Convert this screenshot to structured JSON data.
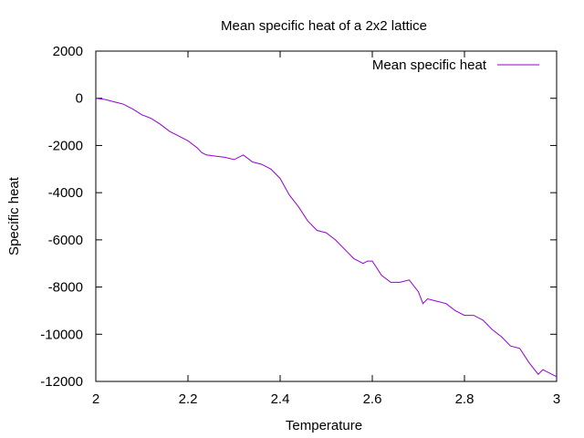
{
  "chart_data": {
    "type": "line",
    "title": "Mean specific heat of a 2x2 lattice",
    "xlabel": "Temperature",
    "ylabel": "Specific heat",
    "xlim": [
      2,
      3
    ],
    "ylim": [
      -12000,
      2000
    ],
    "xticks": [
      "2",
      "2.2",
      "2.4",
      "2.6",
      "2.8",
      "3"
    ],
    "yticks": [
      "2000",
      "0",
      "-2000",
      "-4000",
      "-6000",
      "-8000",
      "-10000",
      "-12000"
    ],
    "grid": false,
    "legend_position": "top-right",
    "series": [
      {
        "name": "Mean specific heat",
        "color": "#9400d3",
        "x": [
          2.0,
          2.02,
          2.04,
          2.06,
          2.08,
          2.1,
          2.12,
          2.14,
          2.16,
          2.18,
          2.2,
          2.22,
          2.23,
          2.24,
          2.26,
          2.28,
          2.3,
          2.32,
          2.34,
          2.36,
          2.38,
          2.4,
          2.42,
          2.44,
          2.46,
          2.48,
          2.5,
          2.52,
          2.54,
          2.56,
          2.58,
          2.59,
          2.6,
          2.62,
          2.64,
          2.66,
          2.68,
          2.7,
          2.71,
          2.72,
          2.74,
          2.76,
          2.78,
          2.8,
          2.82,
          2.84,
          2.86,
          2.88,
          2.9,
          2.92,
          2.94,
          2.96,
          2.97,
          2.98,
          3.0
        ],
        "y": [
          0,
          -50,
          -150,
          -250,
          -450,
          -700,
          -850,
          -1100,
          -1400,
          -1600,
          -1800,
          -2100,
          -2300,
          -2400,
          -2450,
          -2500,
          -2600,
          -2400,
          -2700,
          -2800,
          -3000,
          -3400,
          -4100,
          -4600,
          -5200,
          -5600,
          -5700,
          -6000,
          -6400,
          -6800,
          -7000,
          -6900,
          -6900,
          -7500,
          -7800,
          -7800,
          -7700,
          -8200,
          -8700,
          -8500,
          -8600,
          -8700,
          -9000,
          -9200,
          -9200,
          -9400,
          -9800,
          -10100,
          -10500,
          -10600,
          -11200,
          -11700,
          -11500,
          -11600,
          -11800
        ]
      }
    ]
  }
}
